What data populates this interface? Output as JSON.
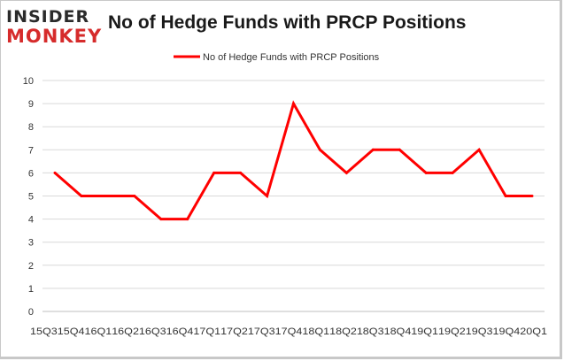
{
  "logo": {
    "line1": "INSIDER",
    "line2": "MONKEY"
  },
  "title": "No of Hedge Funds with PRCP Positions",
  "chart_data": {
    "type": "line",
    "title": "No of Hedge Funds with PRCP Positions",
    "categories": [
      "15Q3",
      "15Q4",
      "16Q1",
      "16Q2",
      "16Q3",
      "16Q4",
      "17Q1",
      "17Q2",
      "17Q3",
      "17Q4",
      "18Q1",
      "18Q2",
      "18Q3",
      "18Q4",
      "19Q1",
      "19Q2",
      "19Q3",
      "19Q4",
      "20Q1"
    ],
    "series": [
      {
        "name": "No of Hedge Funds with PRCP Positions",
        "values": [
          6,
          5,
          5,
          5,
          4,
          4,
          6,
          6,
          5,
          9,
          7,
          6,
          7,
          7,
          6,
          6,
          7,
          5,
          5
        ],
        "color": "#ff0000"
      }
    ],
    "ylim": [
      0,
      10
    ],
    "yticks": [
      0,
      1,
      2,
      3,
      4,
      5,
      6,
      7,
      8,
      9,
      10
    ],
    "xlabel": "",
    "ylabel": "",
    "grid": "horizontal",
    "legend": "top"
  }
}
